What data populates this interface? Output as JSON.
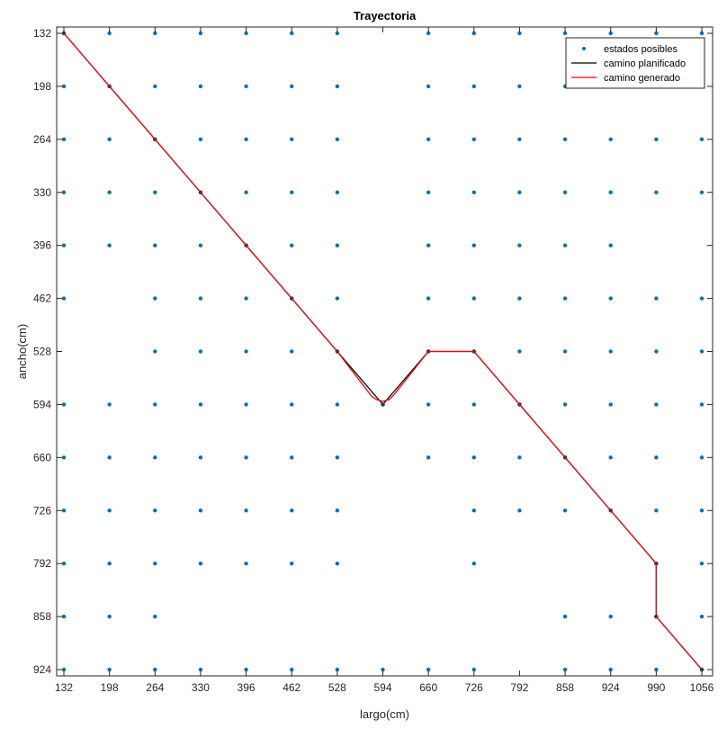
{
  "chart_data": {
    "type": "scatter",
    "title": "Trayectoria",
    "xlabel": "largo(cm)",
    "ylabel": "ancho(cm)",
    "xlim": [
      132,
      1056
    ],
    "ylim": [
      132,
      924
    ],
    "y_reversed": true,
    "xticks": [
      132,
      198,
      264,
      330,
      396,
      462,
      528,
      594,
      660,
      726,
      792,
      858,
      924,
      990,
      1056
    ],
    "yticks": [
      132,
      198,
      264,
      330,
      396,
      462,
      528,
      594,
      660,
      726,
      792,
      858,
      924
    ],
    "grid": false,
    "legend_position": "top-right",
    "colors": {
      "states": "#0072BD",
      "planned": "#000000",
      "generated": "#FF0000"
    },
    "states": [
      [
        132,
        132
      ],
      [
        198,
        132
      ],
      [
        264,
        132
      ],
      [
        330,
        132
      ],
      [
        396,
        132
      ],
      [
        462,
        132
      ],
      [
        528,
        132
      ],
      [
        660,
        132
      ],
      [
        726,
        132
      ],
      [
        792,
        132
      ],
      [
        858,
        132
      ],
      [
        924,
        132
      ],
      [
        990,
        132
      ],
      [
        1056,
        132
      ],
      [
        132,
        198
      ],
      [
        198,
        198
      ],
      [
        264,
        198
      ],
      [
        330,
        198
      ],
      [
        396,
        198
      ],
      [
        462,
        198
      ],
      [
        528,
        198
      ],
      [
        660,
        198
      ],
      [
        726,
        198
      ],
      [
        792,
        198
      ],
      [
        858,
        198
      ],
      [
        924,
        198
      ],
      [
        990,
        198
      ],
      [
        1056,
        198
      ],
      [
        132,
        264
      ],
      [
        198,
        264
      ],
      [
        264,
        264
      ],
      [
        330,
        264
      ],
      [
        396,
        264
      ],
      [
        462,
        264
      ],
      [
        528,
        264
      ],
      [
        660,
        264
      ],
      [
        726,
        264
      ],
      [
        792,
        264
      ],
      [
        858,
        264
      ],
      [
        924,
        264
      ],
      [
        990,
        264
      ],
      [
        1056,
        264
      ],
      [
        132,
        330
      ],
      [
        198,
        330
      ],
      [
        264,
        330
      ],
      [
        330,
        330
      ],
      [
        396,
        330
      ],
      [
        462,
        330
      ],
      [
        528,
        330
      ],
      [
        660,
        330
      ],
      [
        726,
        330
      ],
      [
        792,
        330
      ],
      [
        858,
        330
      ],
      [
        924,
        330
      ],
      [
        990,
        330
      ],
      [
        1056,
        330
      ],
      [
        132,
        396
      ],
      [
        198,
        396
      ],
      [
        264,
        396
      ],
      [
        330,
        396
      ],
      [
        396,
        396
      ],
      [
        462,
        396
      ],
      [
        528,
        396
      ],
      [
        660,
        396
      ],
      [
        726,
        396
      ],
      [
        792,
        396
      ],
      [
        858,
        396
      ],
      [
        924,
        396
      ],
      [
        132,
        462
      ],
      [
        264,
        462
      ],
      [
        330,
        462
      ],
      [
        396,
        462
      ],
      [
        462,
        462
      ],
      [
        528,
        462
      ],
      [
        660,
        462
      ],
      [
        726,
        462
      ],
      [
        792,
        462
      ],
      [
        858,
        462
      ],
      [
        924,
        462
      ],
      [
        990,
        462
      ],
      [
        1056,
        462
      ],
      [
        264,
        528
      ],
      [
        330,
        528
      ],
      [
        396,
        528
      ],
      [
        462,
        528
      ],
      [
        528,
        528
      ],
      [
        660,
        528
      ],
      [
        726,
        528
      ],
      [
        792,
        528
      ],
      [
        858,
        528
      ],
      [
        924,
        528
      ],
      [
        990,
        528
      ],
      [
        1056,
        528
      ],
      [
        132,
        594
      ],
      [
        198,
        594
      ],
      [
        264,
        594
      ],
      [
        330,
        594
      ],
      [
        396,
        594
      ],
      [
        462,
        594
      ],
      [
        528,
        594
      ],
      [
        594,
        594
      ],
      [
        660,
        594
      ],
      [
        726,
        594
      ],
      [
        792,
        594
      ],
      [
        858,
        594
      ],
      [
        924,
        594
      ],
      [
        990,
        594
      ],
      [
        1056,
        594
      ],
      [
        132,
        660
      ],
      [
        198,
        660
      ],
      [
        264,
        660
      ],
      [
        330,
        660
      ],
      [
        396,
        660
      ],
      [
        462,
        660
      ],
      [
        528,
        660
      ],
      [
        660,
        660
      ],
      [
        726,
        660
      ],
      [
        792,
        660
      ],
      [
        858,
        660
      ],
      [
        924,
        660
      ],
      [
        990,
        660
      ],
      [
        1056,
        660
      ],
      [
        132,
        726
      ],
      [
        198,
        726
      ],
      [
        264,
        726
      ],
      [
        330,
        726
      ],
      [
        396,
        726
      ],
      [
        462,
        726
      ],
      [
        528,
        726
      ],
      [
        726,
        726
      ],
      [
        792,
        726
      ],
      [
        858,
        726
      ],
      [
        924,
        726
      ],
      [
        990,
        726
      ],
      [
        1056,
        726
      ],
      [
        132,
        792
      ],
      [
        198,
        792
      ],
      [
        264,
        792
      ],
      [
        330,
        792
      ],
      [
        396,
        792
      ],
      [
        462,
        792
      ],
      [
        528,
        792
      ],
      [
        726,
        792
      ],
      [
        990,
        792
      ],
      [
        1056,
        792
      ],
      [
        132,
        858
      ],
      [
        198,
        858
      ],
      [
        264,
        858
      ],
      [
        858,
        858
      ],
      [
        924,
        858
      ],
      [
        990,
        858
      ],
      [
        1056,
        858
      ],
      [
        132,
        924
      ],
      [
        198,
        924
      ],
      [
        264,
        924
      ],
      [
        330,
        924
      ],
      [
        396,
        924
      ],
      [
        462,
        924
      ],
      [
        528,
        924
      ],
      [
        594,
        924
      ],
      [
        660,
        924
      ],
      [
        726,
        924
      ],
      [
        858,
        924
      ],
      [
        924,
        924
      ],
      [
        990,
        924
      ],
      [
        1056,
        924
      ]
    ],
    "series": [
      {
        "name": "estados posibles",
        "style": "points"
      },
      {
        "name": "camino planificado",
        "style": "line",
        "x": [
          132,
          198,
          264,
          330,
          396,
          462,
          528,
          594,
          660,
          726,
          792,
          858,
          924,
          990,
          990,
          1056
        ],
        "y": [
          132,
          198,
          264,
          330,
          396,
          462,
          528,
          594,
          528,
          528,
          594,
          660,
          726,
          792,
          858,
          924
        ]
      },
      {
        "name": "camino generado",
        "style": "line",
        "x": [
          132,
          198,
          264,
          330,
          396,
          462,
          528,
          578,
          585,
          594,
          603,
          610,
          660,
          726,
          792,
          858,
          924,
          988,
          990,
          990,
          992,
          1056
        ],
        "y": [
          132,
          198,
          264,
          330,
          396,
          462,
          528,
          584,
          588,
          590,
          588,
          582,
          528,
          528,
          594,
          660,
          726,
          790,
          795,
          855,
          860,
          924
        ]
      }
    ]
  }
}
